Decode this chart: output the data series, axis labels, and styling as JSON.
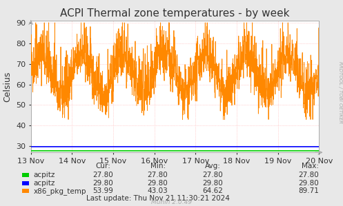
{
  "title": "ACPI Thermal zone temperatures - by week",
  "ylabel": "Celsius",
  "bg_color": "#e8e8e8",
  "plot_bg_color": "#ffffff",
  "grid_color": "#ff9999",
  "ylim": [
    27,
    91
  ],
  "yticks": [
    30,
    40,
    50,
    60,
    70,
    80,
    90
  ],
  "xticklabels": [
    "13 Nov",
    "14 Nov",
    "15 Nov",
    "16 Nov",
    "17 Nov",
    "18 Nov",
    "19 Nov",
    "20 Nov"
  ],
  "acpitz1_value": 27.8,
  "acpitz2_value": 29.8,
  "legend_items": [
    {
      "label": "acpitz",
      "color": "#00cc00",
      "cur": "27.80",
      "min": "27.80",
      "avg": "27.80",
      "max": "27.80"
    },
    {
      "label": "acpitz",
      "color": "#0000ff",
      "cur": "29.80",
      "min": "29.80",
      "avg": "29.80",
      "max": "29.80"
    },
    {
      "label": "x86_pkg_temp",
      "color": "#ff8800",
      "cur": "53.99",
      "min": "43.03",
      "avg": "64.62",
      "max": "89.71"
    }
  ],
  "last_update": "Last update: Thu Nov 21 11:30:21 2024",
  "munin_version": "Munin 2.0.49",
  "rrdtool_label": "RRDTOOL / TOBI OETIKER",
  "title_fontsize": 11,
  "axis_fontsize": 8,
  "legend_fontsize": 7.5,
  "arrow_color": "#aaaaaa"
}
